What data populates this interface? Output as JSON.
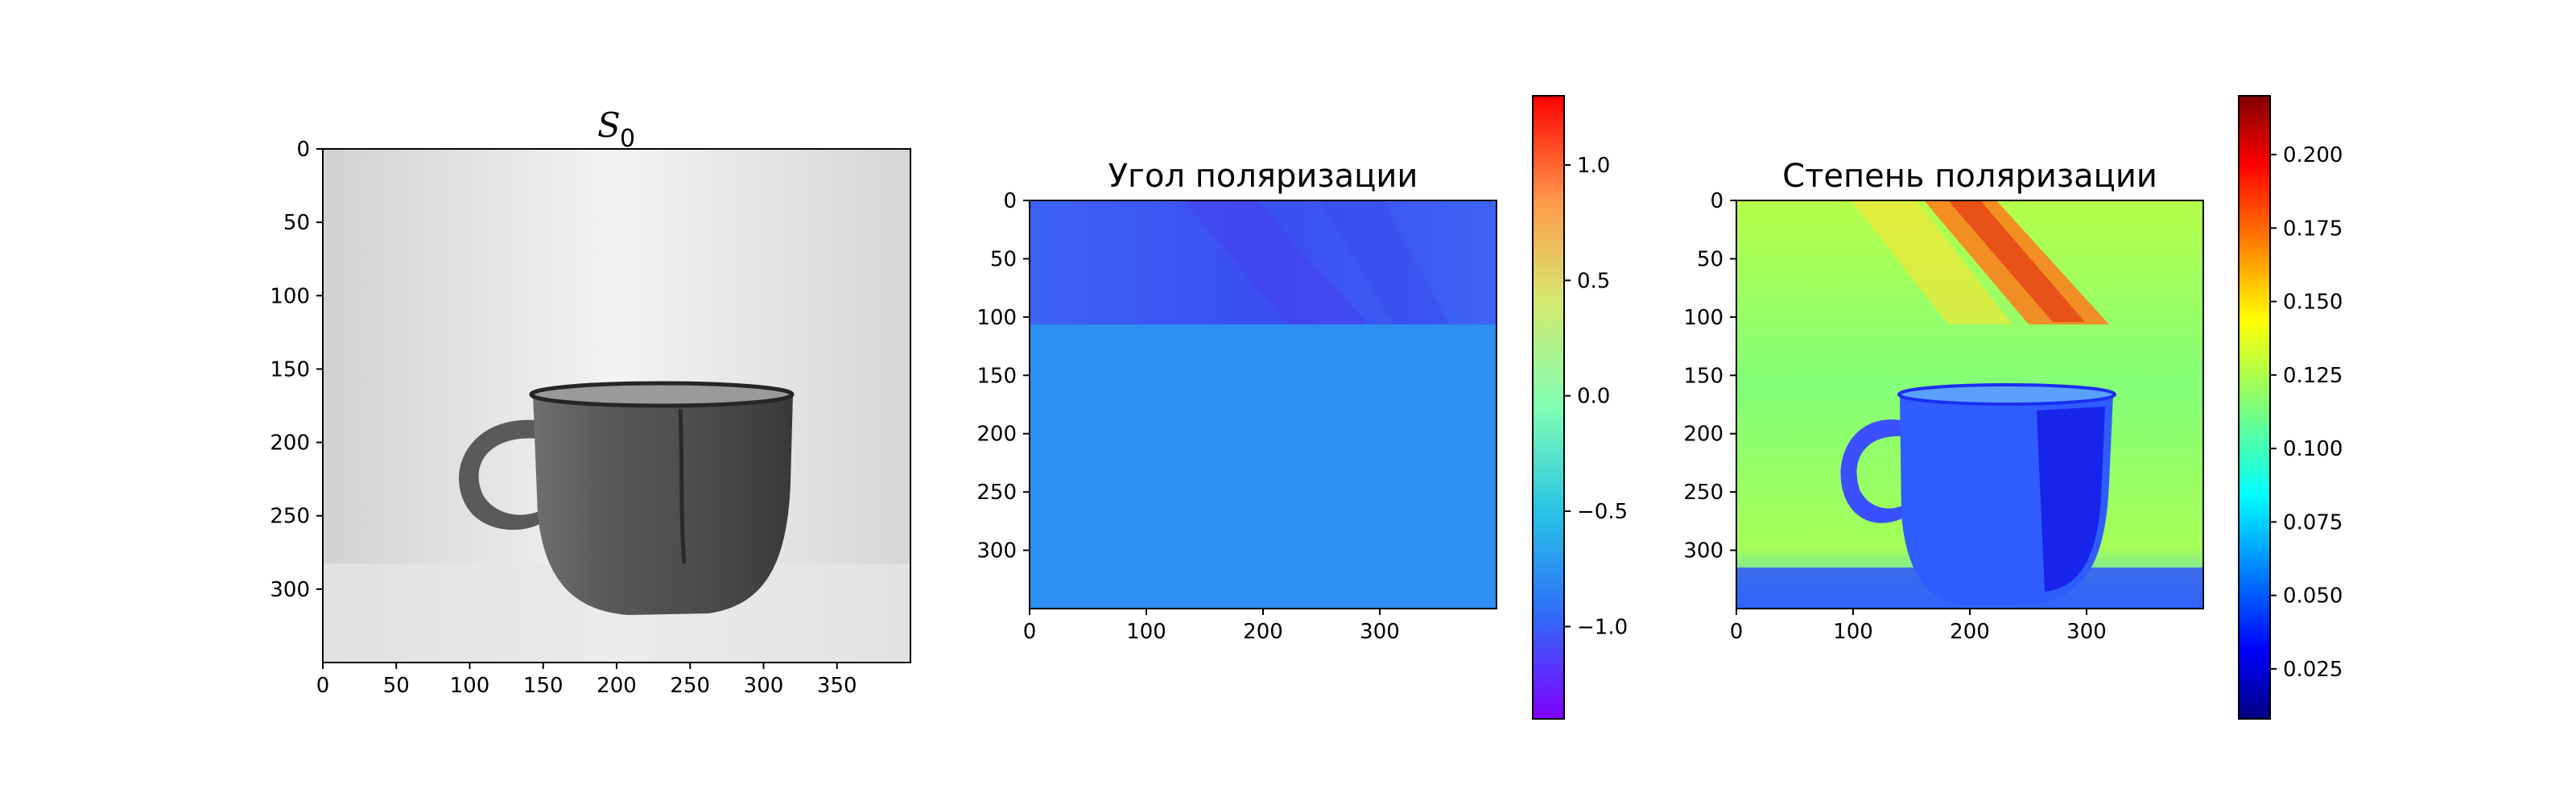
{
  "chart_data": [
    {
      "type": "heatmap",
      "title_main": "S",
      "title_sub": "0",
      "colormap": "gray",
      "image": "photo of a ceramic cup with handle on light background",
      "x": {
        "ticks": [
          0,
          50,
          100,
          150,
          200,
          250,
          300,
          350
        ],
        "labels": [
          "0",
          "50",
          "100",
          "150",
          "200",
          "250",
          "300",
          "350"
        ],
        "lim": [
          0,
          400
        ]
      },
      "y": {
        "ticks": [
          0,
          50,
          100,
          150,
          200,
          250,
          300
        ],
        "labels": [
          "0",
          "50",
          "100",
          "150",
          "200",
          "250",
          "300"
        ],
        "lim": [
          0,
          350
        ]
      }
    },
    {
      "type": "heatmap",
      "title": "Угол поляризации",
      "colormap": "rainbow",
      "regions": [
        {
          "rows": [
            0,
            105
          ],
          "value": -1.0
        },
        {
          "rows": [
            105,
            350
          ],
          "value": -0.75
        }
      ],
      "x": {
        "ticks": [
          0,
          100,
          200,
          300
        ],
        "labels": [
          "0",
          "100",
          "200",
          "300"
        ],
        "lim": [
          0,
          400
        ]
      },
      "y": {
        "ticks": [
          0,
          50,
          100,
          150,
          200,
          250,
          300
        ],
        "labels": [
          "0",
          "50",
          "100",
          "150",
          "200",
          "250",
          "300"
        ],
        "lim": [
          0,
          350
        ]
      },
      "colorbar": {
        "min": -1.4,
        "max": 1.3,
        "ticks": [
          1.0,
          0.5,
          0.0,
          -0.5,
          -1.0
        ],
        "labels": [
          "1.0",
          "0.5",
          "0.0",
          "−0.5",
          "−1.0"
        ]
      }
    },
    {
      "type": "heatmap",
      "title": "Степень поляризации",
      "colormap": "jet",
      "background_value": 0.12,
      "hot_band_value": 0.18,
      "cup_value": 0.06,
      "x": {
        "ticks": [
          0,
          100,
          200,
          300
        ],
        "labels": [
          "0",
          "100",
          "200",
          "300"
        ],
        "lim": [
          0,
          400
        ]
      },
      "y": {
        "ticks": [
          0,
          50,
          100,
          150,
          200,
          250,
          300
        ],
        "labels": [
          "0",
          "50",
          "100",
          "150",
          "200",
          "250",
          "300"
        ],
        "lim": [
          0,
          350
        ]
      },
      "colorbar": {
        "min": 0.008,
        "max": 0.22,
        "ticks": [
          0.2,
          0.175,
          0.15,
          0.125,
          0.1,
          0.075,
          0.05,
          0.025
        ],
        "labels": [
          "0.200",
          "0.175",
          "0.150",
          "0.125",
          "0.100",
          "0.075",
          "0.050",
          "0.025"
        ]
      }
    }
  ]
}
